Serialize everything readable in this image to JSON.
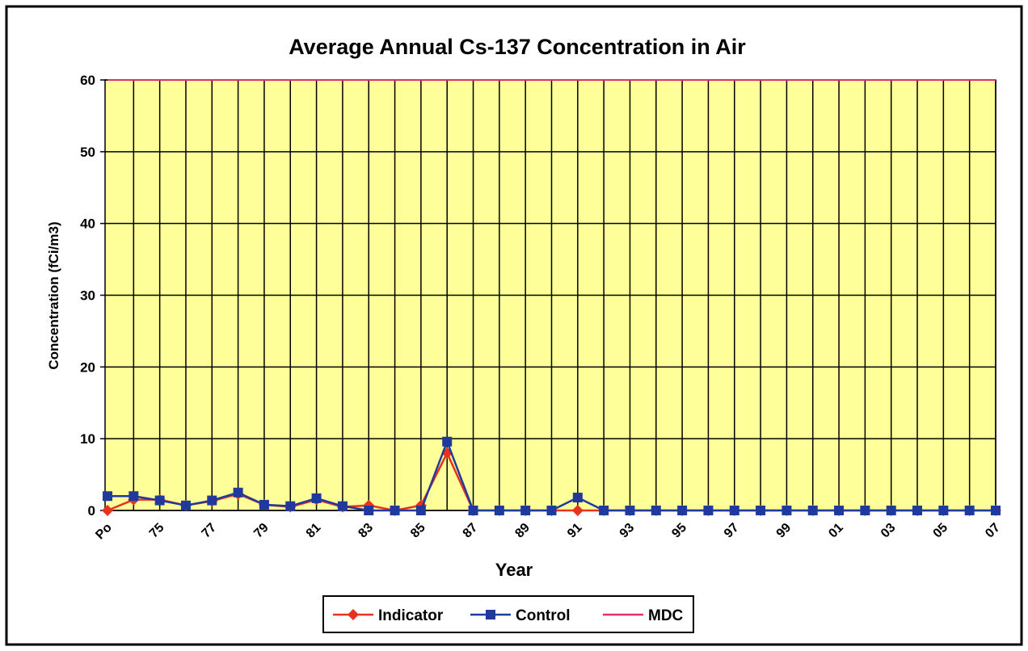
{
  "chart_data": {
    "type": "line",
    "title": "Average Annual Cs-137 Concentration in Air",
    "x_label": "Year",
    "y_label": "Concentration (fCi/m3)",
    "categories": [
      "Po",
      null,
      "75",
      null,
      "77",
      null,
      "79",
      null,
      "81",
      null,
      "83",
      null,
      "85",
      null,
      "87",
      null,
      "89",
      null,
      "91",
      null,
      "93",
      null,
      "95",
      null,
      "97",
      null,
      "99",
      null,
      "01",
      null,
      "03",
      null,
      "05",
      null,
      "07"
    ],
    "ylim": [
      0,
      60
    ],
    "yticks": [
      0,
      10,
      20,
      30,
      40,
      50,
      60
    ],
    "grid": true,
    "legend": "bottom",
    "series": [
      {
        "name": "Indicator",
        "color": "#e8321e",
        "marker": "diamond",
        "values": [
          0,
          1.5,
          1.5,
          0.7,
          1.3,
          2.3,
          0.8,
          0.5,
          1.5,
          0.5,
          0.7,
          0,
          0.7,
          8,
          0,
          0,
          0,
          0,
          0,
          0,
          0,
          0,
          0,
          0,
          0,
          0,
          0,
          0,
          0,
          0,
          0,
          0,
          0,
          0,
          0
        ]
      },
      {
        "name": "Control",
        "color": "#1f3a9c",
        "marker": "square",
        "values": [
          2,
          2,
          1.4,
          0.7,
          1.4,
          2.5,
          0.8,
          0.6,
          1.7,
          0.6,
          0,
          0,
          0,
          9.6,
          0,
          0,
          0,
          0,
          1.8,
          0,
          0,
          0,
          0,
          0,
          0,
          0,
          0,
          0,
          0,
          0,
          0,
          0,
          0,
          0,
          0
        ]
      },
      {
        "name": "MDC",
        "color": "#e0306a",
        "marker": "none",
        "values": [
          60,
          60,
          60,
          60,
          60,
          60,
          60,
          60,
          60,
          60,
          60,
          60,
          60,
          60,
          60,
          60,
          60,
          60,
          60,
          60,
          60,
          60,
          60,
          60,
          60,
          60,
          60,
          60,
          60,
          60,
          60,
          60,
          60,
          60,
          60
        ]
      }
    ]
  }
}
